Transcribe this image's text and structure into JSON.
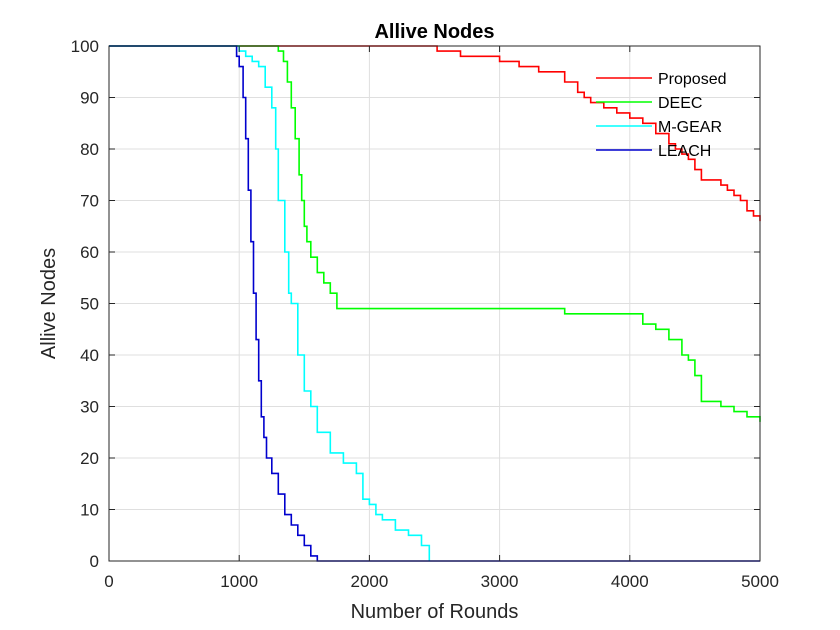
{
  "chart_data": {
    "type": "line",
    "title": "Allive Nodes",
    "xlabel": "Number of Rounds",
    "ylabel": "Allive Nodes",
    "xlim": [
      0,
      5000
    ],
    "ylim": [
      0,
      100
    ],
    "xticks": [
      0,
      1000,
      2000,
      3000,
      4000,
      5000
    ],
    "yticks": [
      0,
      10,
      20,
      30,
      40,
      50,
      60,
      70,
      80,
      90,
      100
    ],
    "grid": true,
    "legend_position": "top-right",
    "series": [
      {
        "name": "Proposed",
        "color": "#ff0000",
        "x": [
          0,
          1100,
          2400,
          2520,
          2700,
          2900,
          3000,
          3150,
          3300,
          3500,
          3600,
          3650,
          3700,
          3800,
          3900,
          4000,
          4100,
          4200,
          4300,
          4350,
          4400,
          4450,
          4500,
          4550,
          4600,
          4700,
          4750,
          4800,
          4850,
          4900,
          4950,
          5000
        ],
        "y": [
          100,
          100,
          100,
          99,
          98,
          98,
          97,
          96,
          95,
          93,
          91,
          90,
          89,
          88,
          87,
          86,
          85,
          83,
          81,
          80,
          79,
          78,
          76,
          74,
          74,
          73,
          72,
          71,
          70,
          68,
          67,
          66
        ]
      },
      {
        "name": "DEEC",
        "color": "#00ff00",
        "x": [
          0,
          1050,
          1150,
          1250,
          1300,
          1340,
          1370,
          1400,
          1430,
          1460,
          1480,
          1500,
          1520,
          1550,
          1600,
          1650,
          1700,
          1750,
          2000,
          2500,
          3000,
          3450,
          3500,
          3950,
          4100,
          4200,
          4300,
          4400,
          4450,
          4500,
          4550,
          4600,
          4700,
          4800,
          4900,
          5000
        ],
        "y": [
          100,
          100,
          100,
          100,
          99,
          97,
          93,
          88,
          82,
          75,
          70,
          65,
          62,
          59,
          56,
          54,
          52,
          49,
          49,
          49,
          49,
          49,
          48,
          48,
          46,
          45,
          43,
          40,
          39,
          36,
          31,
          31,
          30,
          29,
          28,
          27
        ]
      },
      {
        "name": "M-GEAR",
        "color": "#00ffff",
        "x": [
          0,
          950,
          1000,
          1050,
          1100,
          1150,
          1200,
          1250,
          1280,
          1300,
          1350,
          1380,
          1400,
          1450,
          1500,
          1550,
          1600,
          1700,
          1800,
          1900,
          1950,
          2000,
          2050,
          2100,
          2200,
          2300,
          2400,
          2460
        ],
        "y": [
          100,
          100,
          99,
          98,
          97,
          96,
          92,
          88,
          80,
          70,
          60,
          52,
          50,
          40,
          33,
          30,
          25,
          21,
          19,
          17,
          12,
          11,
          9,
          8,
          6,
          5,
          3,
          0
        ]
      },
      {
        "name": "LEACH",
        "color": "#0000cd",
        "x": [
          0,
          950,
          980,
          1000,
          1030,
          1050,
          1070,
          1090,
          1110,
          1130,
          1150,
          1170,
          1190,
          1210,
          1250,
          1300,
          1350,
          1400,
          1450,
          1500,
          1550,
          1600,
          2000,
          3000,
          4000,
          5000
        ],
        "y": [
          100,
          100,
          98,
          96,
          90,
          82,
          72,
          62,
          52,
          43,
          35,
          28,
          24,
          20,
          17,
          13,
          9,
          7,
          5,
          3,
          1,
          0,
          0,
          0,
          0,
          0
        ]
      }
    ]
  }
}
